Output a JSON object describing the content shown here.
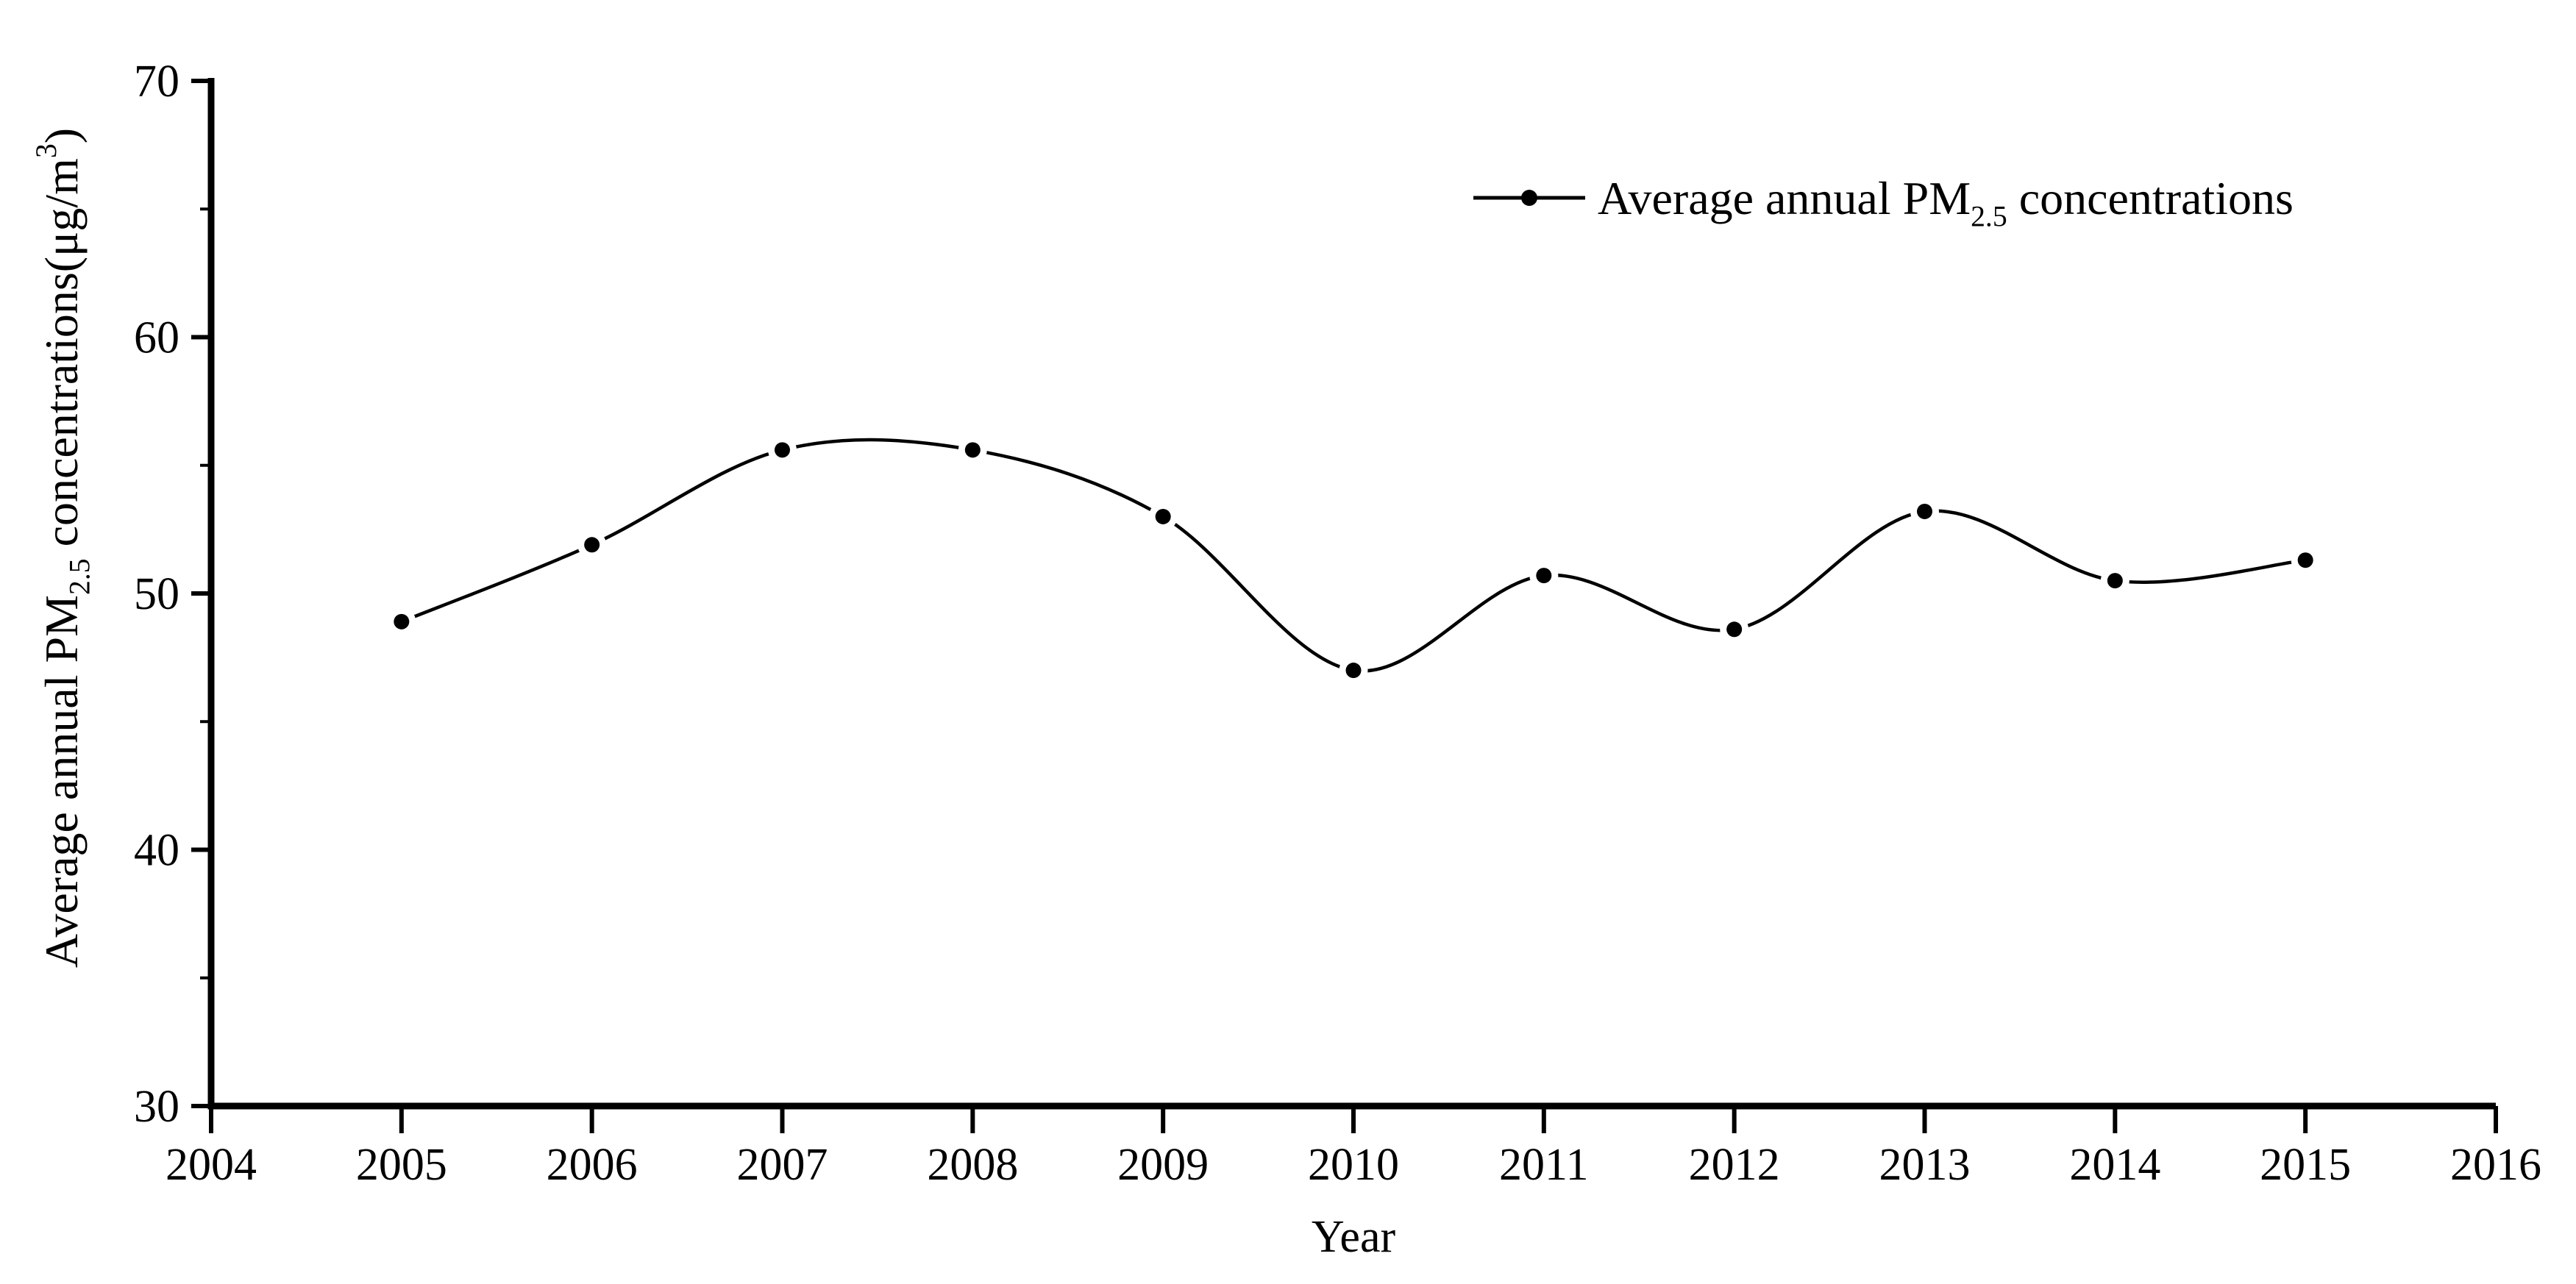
{
  "chart_data": {
    "type": "line",
    "title": "",
    "xlabel": "Year",
    "ylabel_plain": "Average annual PM2.5 concentrations(μg/m3)",
    "ylabel_parts": [
      {
        "t": "Average annual PM"
      },
      {
        "t": "2.5",
        "sub": true
      },
      {
        "t": " concentrations(μg/m"
      },
      {
        "t": "3",
        "sup": true
      },
      {
        "t": ")"
      }
    ],
    "x": [
      2005,
      2006,
      2007,
      2008,
      2009,
      2010,
      2011,
      2012,
      2013,
      2014,
      2015
    ],
    "series": [
      {
        "name": "Average annual PM2.5 concentrations",
        "values": [
          48.9,
          51.9,
          55.6,
          55.6,
          53.0,
          47.0,
          50.7,
          48.6,
          53.2,
          50.5,
          51.3
        ]
      }
    ],
    "xlim": [
      2004,
      2016
    ],
    "ylim": [
      30,
      70
    ],
    "x_major_ticks": [
      2004,
      2005,
      2006,
      2007,
      2008,
      2009,
      2010,
      2011,
      2012,
      2013,
      2014,
      2015,
      2016
    ],
    "y_major_ticks": [
      30,
      40,
      50,
      60,
      70
    ],
    "y_minor_ticks": [
      35,
      45,
      55,
      65
    ],
    "grid": false,
    "curve_style": "smooth-spline",
    "marker": "filled-circle",
    "legend_position": "upper-right-inside",
    "colors": {
      "line": "#000000",
      "marker": "#000000",
      "text": "#000000",
      "background": "#ffffff"
    }
  },
  "legend": {
    "symbol": "line-with-dot-marker",
    "label_plain": "Average annual PM2.5 concentrations",
    "label_parts": [
      {
        "t": "Average annual PM"
      },
      {
        "t": "2.5",
        "sub": true
      },
      {
        "t": " concentrations"
      }
    ]
  }
}
